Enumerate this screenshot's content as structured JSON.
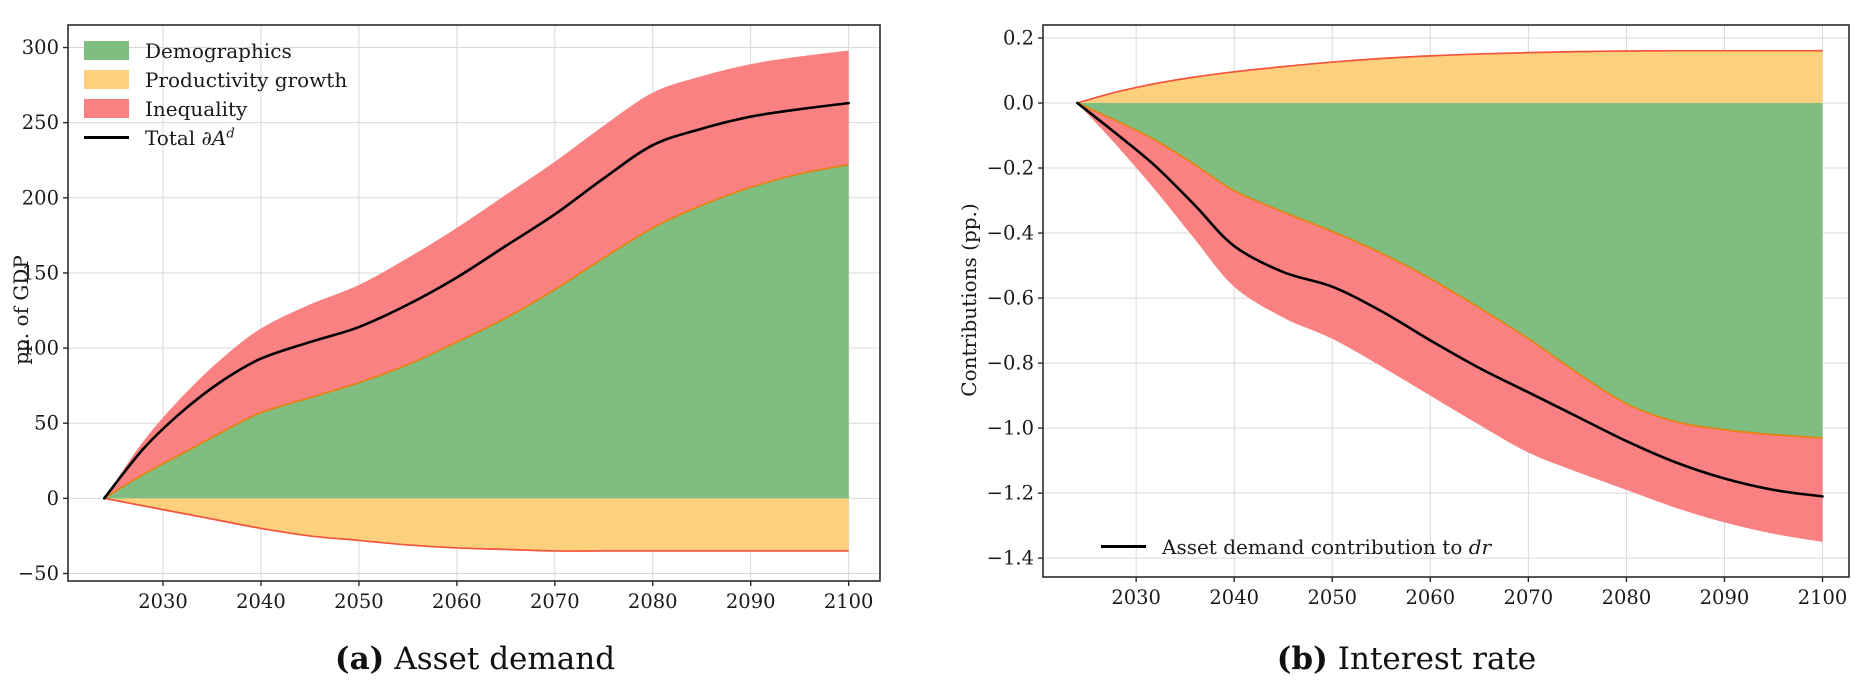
{
  "colors": {
    "demographics": "#80bd80",
    "productivity": "#fdd07d",
    "inequality": "#f98181",
    "demographics_edge": "#e8830f",
    "productivity_edge": "#f2543c",
    "total_line": "#000000",
    "grid": "#d9d9d9",
    "spine": "#2b2b2b",
    "tick_text": "#1a1a1a"
  },
  "panels": [
    {
      "caption_tag": "(a)",
      "caption_text": "Asset demand",
      "ylabel": "pp. of GDP",
      "legend": {
        "demographics": "Demographics",
        "productivity": "Productivity growth",
        "inequality": "Inequality",
        "total_prefix": "Total ",
        "total_math": "∂A",
        "total_sup": "d"
      }
    },
    {
      "caption_tag": "(b)",
      "caption_text": "Interest rate",
      "ylabel": "Contributions (pp.)",
      "legend": {
        "line_prefix": "Asset demand contribution to ",
        "line_math": "dr"
      }
    }
  ],
  "chart_data": [
    {
      "type": "area",
      "title": "(a) Asset demand",
      "xlabel": "",
      "ylabel": "pp. of GDP",
      "grid": true,
      "legend_position": "upper left",
      "x": [
        2024,
        2028,
        2032,
        2036,
        2040,
        2045,
        2050,
        2055,
        2060,
        2065,
        2070,
        2075,
        2080,
        2085,
        2090,
        2095,
        2100
      ],
      "series": [
        {
          "name": "Demographics",
          "kind": "area_from_zero",
          "values": [
            0,
            16,
            30,
            44,
            57,
            67,
            77,
            89,
            104,
            120,
            139,
            160,
            180,
            195,
            207,
            216,
            222
          ]
        },
        {
          "name": "Inequality",
          "kind": "band_outer",
          "stacked_on": "Demographics",
          "values": [
            0,
            38,
            68,
            93,
            113,
            129,
            142,
            160,
            180,
            202,
            224,
            248,
            270,
            281,
            289,
            294,
            298
          ]
        },
        {
          "name": "Productivity growth",
          "kind": "area_from_zero",
          "values": [
            0,
            -5,
            -10,
            -15,
            -20,
            -25,
            -28,
            -31,
            -33,
            -34,
            -35,
            -35,
            -35,
            -35,
            -35,
            -35,
            -35
          ]
        },
        {
          "name": "Total ∂A^d",
          "kind": "line",
          "values": [
            0,
            33,
            58,
            78,
            93,
            104,
            114,
            129,
            147,
            168,
            189,
            213,
            235,
            246,
            254,
            259,
            263
          ]
        }
      ],
      "xticks": [
        2030,
        2040,
        2050,
        2060,
        2070,
        2080,
        2090,
        2100
      ],
      "yticks": [
        300,
        250,
        200,
        150,
        100,
        50,
        0,
        -50
      ],
      "xlim": [
        2020.3,
        2103.2
      ],
      "ylim": [
        -55,
        315
      ],
      "ytick_format": "int"
    },
    {
      "type": "area",
      "title": "(b) Interest rate",
      "xlabel": "",
      "ylabel": "Contributions (pp.)",
      "grid": true,
      "legend_position": "lower left",
      "x": [
        2024,
        2028,
        2032,
        2036,
        2040,
        2045,
        2050,
        2055,
        2060,
        2065,
        2070,
        2075,
        2080,
        2085,
        2090,
        2095,
        2100
      ],
      "series": [
        {
          "name": "Productivity growth",
          "kind": "area_from_zero",
          "values": [
            0,
            0.034,
            0.06,
            0.08,
            0.096,
            0.112,
            0.126,
            0.137,
            0.145,
            0.151,
            0.155,
            0.158,
            0.16,
            0.161,
            0.161,
            0.161,
            0.161
          ]
        },
        {
          "name": "Demographics",
          "kind": "area_from_zero",
          "values": [
            0,
            -0.055,
            -0.115,
            -0.19,
            -0.27,
            -0.335,
            -0.395,
            -0.462,
            -0.54,
            -0.63,
            -0.725,
            -0.83,
            -0.925,
            -0.98,
            -1.005,
            -1.02,
            -1.03
          ]
        },
        {
          "name": "Inequality",
          "kind": "band_outer",
          "stacked_on": "Demographics",
          "values": [
            0,
            -0.13,
            -0.27,
            -0.42,
            -0.565,
            -0.66,
            -0.725,
            -0.81,
            -0.9,
            -0.99,
            -1.075,
            -1.135,
            -1.19,
            -1.245,
            -1.29,
            -1.325,
            -1.35
          ]
        },
        {
          "name": "Asset demand contribution to dr",
          "kind": "line",
          "values": [
            0,
            -0.095,
            -0.195,
            -0.315,
            -0.44,
            -0.52,
            -0.565,
            -0.64,
            -0.73,
            -0.815,
            -0.89,
            -0.965,
            -1.04,
            -1.105,
            -1.155,
            -1.19,
            -1.21
          ]
        }
      ],
      "xticks": [
        2030,
        2040,
        2050,
        2060,
        2070,
        2080,
        2090,
        2100
      ],
      "yticks": [
        0.2,
        0.0,
        -0.2,
        -0.4,
        -0.6,
        -0.8,
        -1.0,
        -1.2,
        -1.4
      ],
      "xlim": [
        2020.5,
        2102.7
      ],
      "ylim": [
        -1.458,
        0.24
      ],
      "ytick_format": "1dp"
    }
  ]
}
